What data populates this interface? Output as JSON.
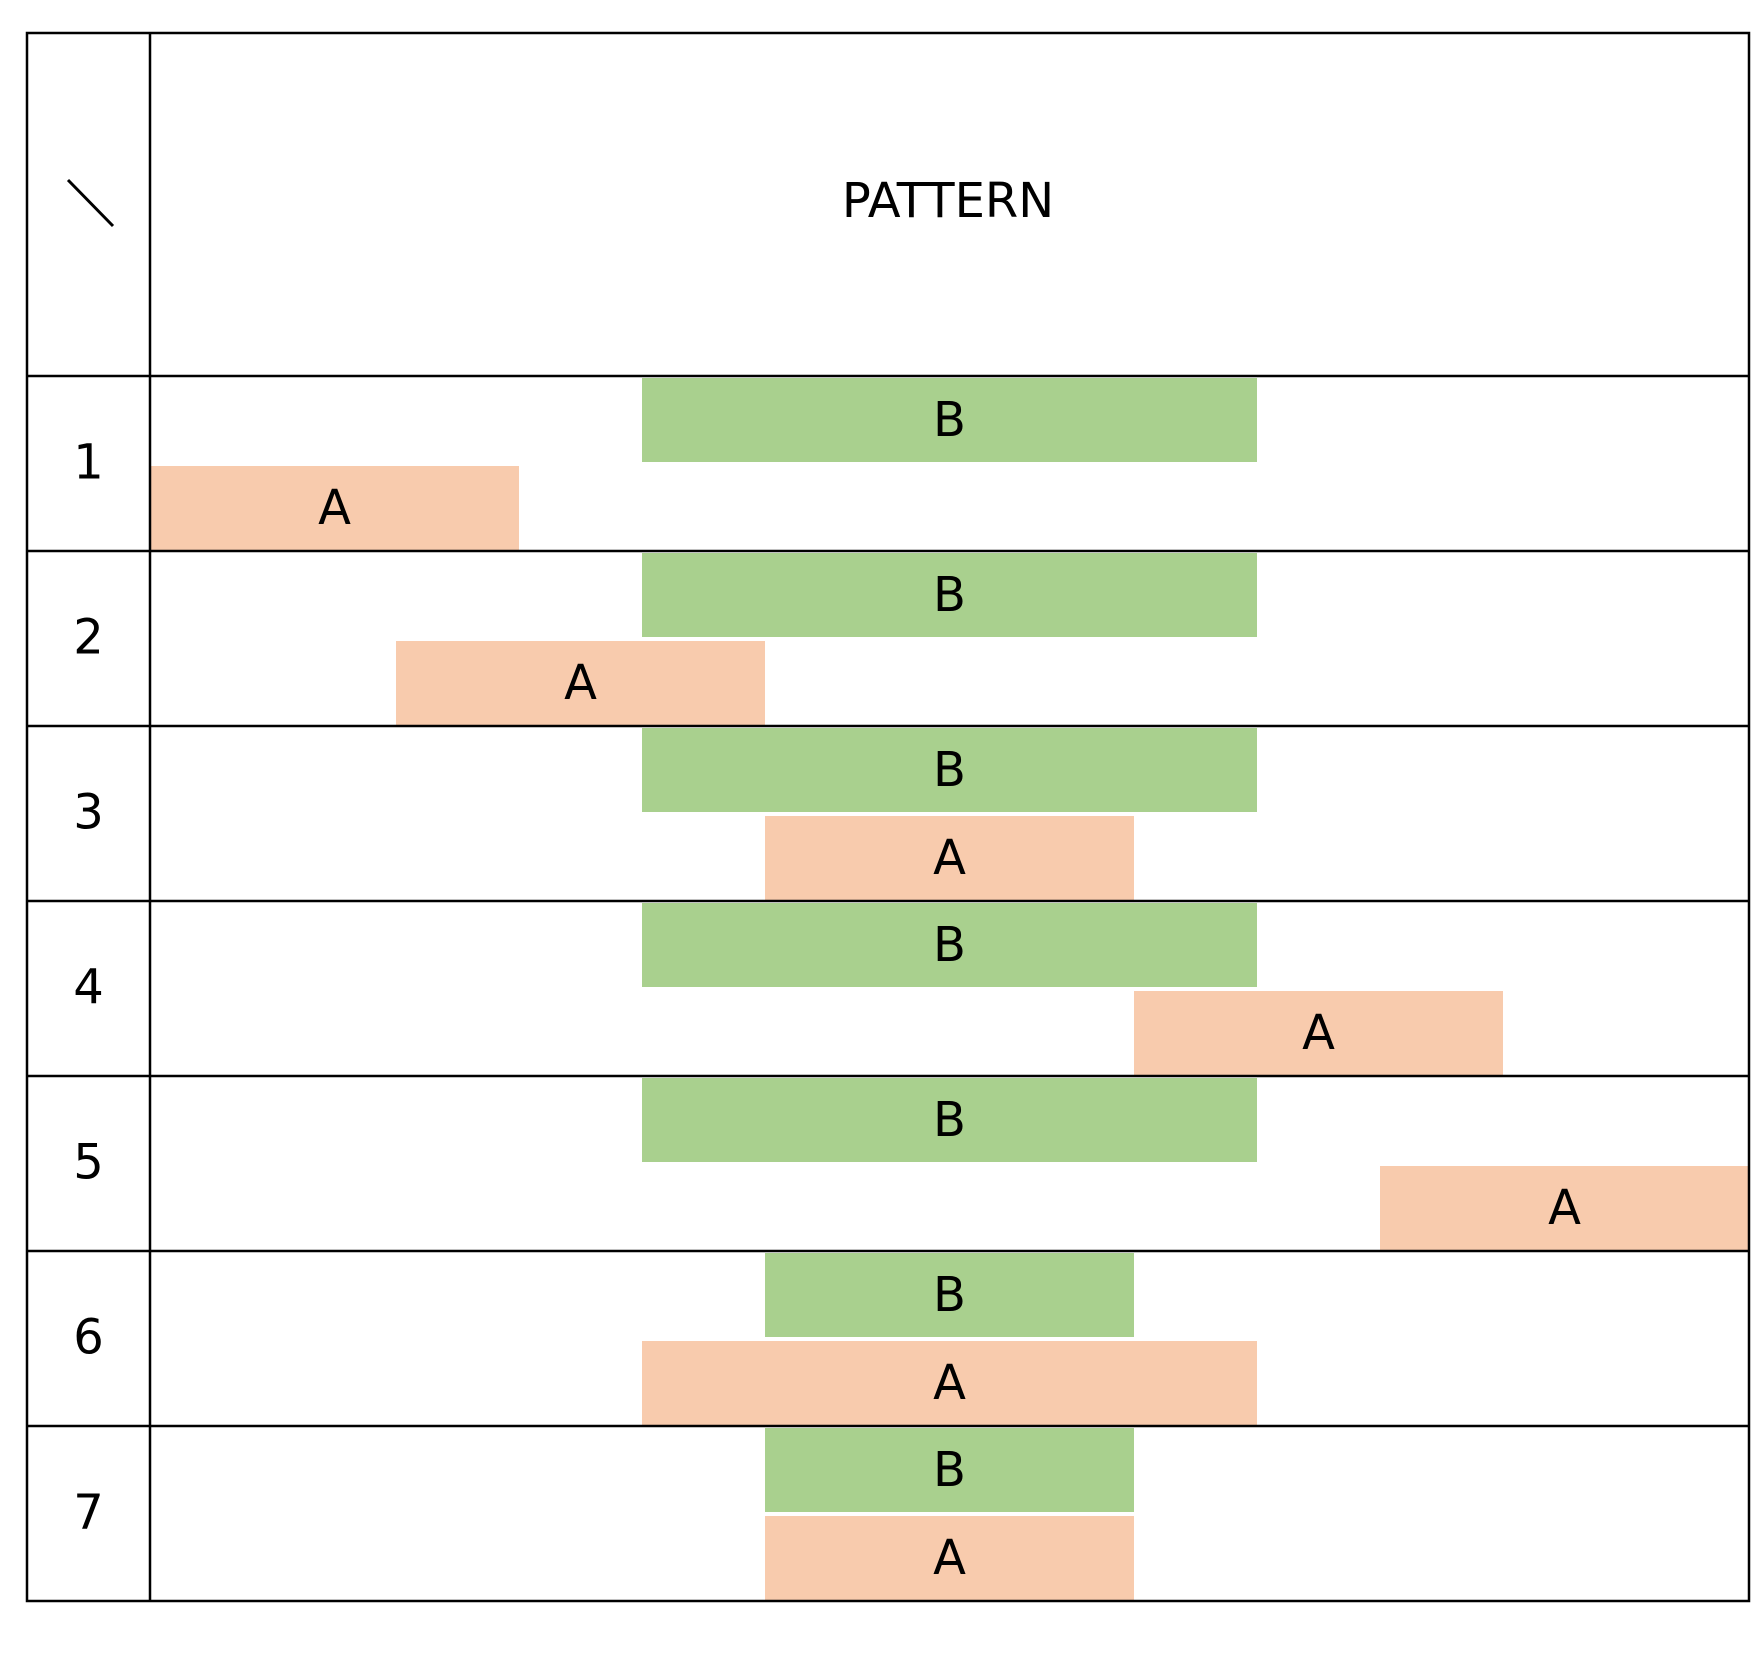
{
  "table": {
    "header": {
      "corner_mark": "slash-diagonal",
      "title": "PATTERN"
    },
    "timeline_units": 13,
    "colors": {
      "bar_B": "#a9d08e",
      "bar_A": "#f8cbad",
      "grid_line": "#000000",
      "text": "#000000"
    },
    "rows": [
      {
        "label": "1",
        "B": {
          "label": "B",
          "start": 4,
          "end": 9
        },
        "A": {
          "label": "A",
          "start": 0,
          "end": 3
        }
      },
      {
        "label": "2",
        "B": {
          "label": "B",
          "start": 4,
          "end": 9
        },
        "A": {
          "label": "A",
          "start": 2,
          "end": 5
        }
      },
      {
        "label": "3",
        "B": {
          "label": "B",
          "start": 4,
          "end": 9
        },
        "A": {
          "label": "A",
          "start": 5,
          "end": 8
        }
      },
      {
        "label": "4",
        "B": {
          "label": "B",
          "start": 4,
          "end": 9
        },
        "A": {
          "label": "A",
          "start": 8,
          "end": 11
        }
      },
      {
        "label": "5",
        "B": {
          "label": "B",
          "start": 4,
          "end": 9
        },
        "A": {
          "label": "A",
          "start": 10,
          "end": 13
        }
      },
      {
        "label": "6",
        "B": {
          "label": "B",
          "start": 5,
          "end": 8
        },
        "A": {
          "label": "A",
          "start": 4,
          "end": 9
        }
      },
      {
        "label": "7",
        "B": {
          "label": "B",
          "start": 5,
          "end": 8
        },
        "A": {
          "label": "A",
          "start": 5,
          "end": 8
        }
      }
    ]
  }
}
